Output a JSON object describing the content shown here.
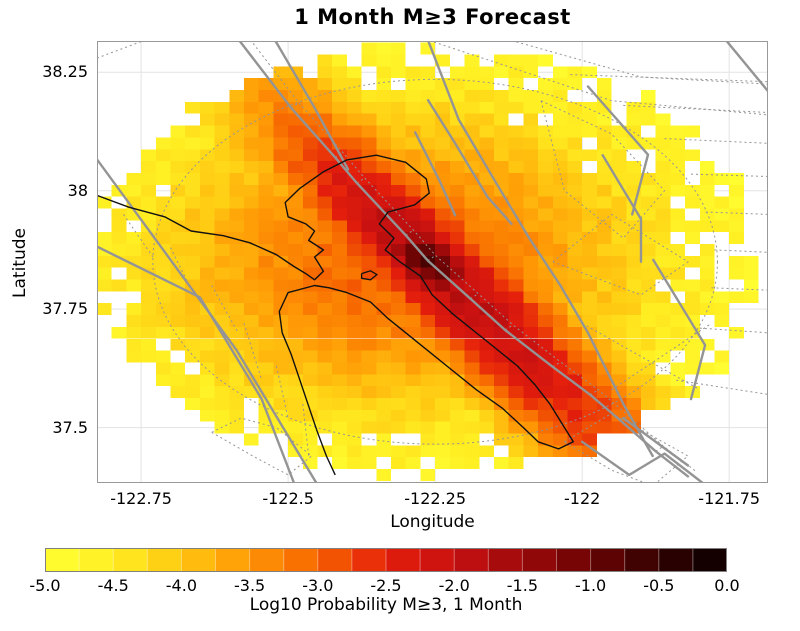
{
  "title": "1 Month M≥3 Forecast",
  "axes": {
    "xlabel": "Longitude",
    "ylabel": "Latitude",
    "xlim": [
      -122.825,
      -121.684
    ],
    "ylim": [
      37.383,
      38.316
    ],
    "x_ticks": [
      -122.75,
      -122.5,
      -122.25,
      -122.0,
      -121.75
    ],
    "x_tick_labels": [
      "-122.75",
      "-122.5",
      "-122.25",
      "-122",
      "-121.75"
    ],
    "y_ticks": [
      38.25,
      38.0,
      37.75,
      37.5
    ],
    "y_tick_labels": [
      "38.25",
      "38",
      "37.75",
      "37.5"
    ],
    "grid_color": "#e3e3e3",
    "frame_color": "#999999"
  },
  "colorbar": {
    "label": "Log10 Probability M≥3, 1 Month",
    "min": -5.0,
    "max": 0.0,
    "segments": 20,
    "ticks": [
      -5.0,
      -4.5,
      -4.0,
      -3.5,
      -3.0,
      -2.5,
      -2.0,
      -1.5,
      -1.0,
      -0.5,
      0.0
    ],
    "tick_labels": [
      "-5.0",
      "-4.5",
      "-4.0",
      "-3.5",
      "-3.0",
      "-2.5",
      "-2.0",
      "-1.5",
      "-1.0",
      "-0.5",
      "0.0"
    ],
    "border_color": "#808080"
  },
  "chart_data": {
    "type": "heatmap",
    "description": "Gridded 1-month M>=3 earthquake forecast for the San Francisco Bay Area; log10 probability per 0.025-degree cell, peak on the Hayward fault, with fault traces (gray), fault-zone polygons (dotted) and coastline (black) overlaid.",
    "value_range": [
      -5.0,
      0.0
    ],
    "cell_size_deg": 0.025,
    "grid": {
      "lon0": -122.825,
      "lat0": 37.3875,
      "cols": 46,
      "rows": 37
    },
    "peak": {
      "lon": -122.2625,
      "lat": 37.8525,
      "log10_probability": -0.7
    },
    "color_stops": [
      [
        -5.0,
        "#FFFF33"
      ],
      [
        -4.5,
        "#FFEE22"
      ],
      [
        -4.0,
        "#FFC711"
      ],
      [
        -3.5,
        "#FF9705"
      ],
      [
        -3.0,
        "#F66400"
      ],
      [
        -2.5,
        "#E41E0C"
      ],
      [
        -2.0,
        "#C81111"
      ],
      [
        -1.5,
        "#9C0909"
      ],
      [
        -1.0,
        "#6B0404"
      ],
      [
        -0.5,
        "#330101"
      ],
      [
        0.0,
        "#0A0000"
      ]
    ],
    "field_model": {
      "base_value": -5.0,
      "noise_amplitude": 0.18,
      "region_ellipse": {
        "cx": -122.26,
        "cy": 37.85,
        "rx": 0.575,
        "ry": 0.46
      },
      "background": {
        "cx": -122.31,
        "cy": 37.85,
        "sx": 0.56,
        "sy": 0.44,
        "amplitude": 2.05,
        "falloff": 1.8
      },
      "ridge": {
        "x0": -122.2625,
        "y0": 37.8525,
        "dir": [
          0.629,
          -0.777
        ],
        "amplitude": 3.2,
        "sigma_perp": 0.09,
        "sigma_along_se": 0.55,
        "sigma_along_nw": 0.36
      },
      "peak_bump": {
        "amplitude": 4.3,
        "sigma_perp": 0.055,
        "sigma_along": 0.085
      },
      "max_value": -0.55
    },
    "overlays": {
      "coastline_color": "#111111",
      "fault_color": "#949494",
      "coastline": [
        [
          -122.825,
          37.99
        ],
        [
          -122.77,
          37.965
        ],
        [
          -122.71,
          37.945
        ],
        [
          -122.665,
          37.915
        ],
        [
          -122.61,
          37.905
        ],
        [
          -122.565,
          37.89
        ],
        [
          -122.52,
          37.865
        ],
        [
          -122.49,
          37.84
        ],
        [
          -122.47,
          37.825
        ],
        [
          -122.455,
          37.812
        ],
        [
          -122.44,
          37.83
        ],
        [
          -122.455,
          37.86
        ],
        [
          -122.44,
          37.875
        ],
        [
          -122.465,
          37.895
        ],
        [
          -122.455,
          37.915
        ],
        [
          -122.47,
          37.93
        ],
        [
          -122.5,
          37.945
        ],
        [
          -122.505,
          37.975
        ],
        [
          -122.48,
          38.005
        ],
        [
          -122.44,
          38.04
        ],
        [
          -122.4,
          38.065
        ],
        [
          -122.35,
          38.075
        ],
        [
          -122.3,
          38.06
        ],
        [
          -122.265,
          38.025
        ],
        [
          -122.26,
          37.995
        ],
        [
          -122.285,
          37.97
        ],
        [
          -122.33,
          37.955
        ],
        [
          -122.345,
          37.93
        ],
        [
          -122.32,
          37.9
        ],
        [
          -122.335,
          37.875
        ],
        [
          -122.31,
          37.85
        ],
        [
          -122.275,
          37.82
        ],
        [
          -122.255,
          37.78
        ],
        [
          -122.22,
          37.74
        ],
        [
          -122.185,
          37.705
        ],
        [
          -122.15,
          37.67
        ],
        [
          -122.11,
          37.63
        ],
        [
          -122.08,
          37.59
        ],
        [
          -122.055,
          37.55
        ],
        [
          -122.03,
          37.5
        ],
        [
          -122.015,
          37.47
        ],
        [
          -122.04,
          37.455
        ],
        [
          -122.075,
          37.47
        ],
        [
          -122.1,
          37.5
        ],
        [
          -122.135,
          37.54
        ],
        [
          -122.18,
          37.58
        ],
        [
          -122.23,
          37.63
        ],
        [
          -122.285,
          37.685
        ],
        [
          -122.33,
          37.73
        ],
        [
          -122.36,
          37.765
        ],
        [
          -122.4,
          37.785
        ],
        [
          -122.43,
          37.795
        ],
        [
          -122.455,
          37.8
        ],
        [
          -122.5,
          37.785
        ],
        [
          -122.515,
          37.745
        ],
        [
          -122.51,
          37.7
        ],
        [
          -122.495,
          37.655
        ],
        [
          -122.48,
          37.6
        ],
        [
          -122.465,
          37.545
        ],
        [
          -122.45,
          37.49
        ],
        [
          -122.435,
          37.44
        ],
        [
          -122.42,
          37.4
        ]
      ],
      "island": [
        [
          -122.375,
          37.825
        ],
        [
          -122.36,
          37.831
        ],
        [
          -122.349,
          37.823
        ],
        [
          -122.36,
          37.812
        ],
        [
          -122.375,
          37.815
        ],
        [
          -122.375,
          37.825
        ]
      ],
      "faults": [
        [
          [
            -122.825,
            38.066
          ],
          [
            -122.588,
            37.664
          ],
          [
            -122.452,
            37.383
          ]
        ],
        [
          [
            -122.825,
            37.882
          ],
          [
            -122.65,
            37.775
          ],
          [
            -122.545,
            37.56
          ],
          [
            -122.49,
            37.383
          ]
        ],
        [
          [
            -122.583,
            38.317
          ],
          [
            -122.495,
            38.175
          ],
          [
            -122.42,
            38.07
          ],
          [
            -122.383,
            38.016
          ],
          [
            -122.3,
            37.906
          ],
          [
            -122.2625,
            37.8525
          ],
          [
            -122.19,
            37.772
          ],
          [
            -122.131,
            37.706
          ],
          [
            -122.05,
            37.628
          ],
          [
            -121.986,
            37.569
          ],
          [
            -121.935,
            37.515
          ],
          [
            -121.875,
            37.45
          ],
          [
            -121.82,
            37.397
          ]
        ],
        [
          [
            -122.522,
            38.317
          ],
          [
            -122.455,
            38.175
          ],
          [
            -122.398,
            38.045
          ]
        ],
        [
          [
            -122.262,
            38.317
          ],
          [
            -122.21,
            38.15
          ],
          [
            -122.148,
            38.02
          ],
          [
            -122.09,
            37.9
          ],
          [
            -122.037,
            37.8
          ],
          [
            -121.99,
            37.7
          ],
          [
            -121.93,
            37.55
          ],
          [
            -121.88,
            37.44
          ]
        ],
        [
          [
            -122.284,
            38.123
          ],
          [
            -122.243,
            38.022
          ],
          [
            -122.216,
            37.948
          ]
        ],
        [
          [
            -121.99,
            38.22
          ],
          [
            -121.888,
            38.076
          ],
          [
            -121.915,
            37.95
          ]
        ],
        [
          [
            -121.965,
            38.075
          ],
          [
            -121.9,
            37.94
          ],
          [
            -121.9,
            37.85
          ]
        ],
        [
          [
            -121.755,
            38.317
          ],
          [
            -121.684,
            38.21
          ]
        ],
        [
          [
            -122.262,
            38.191
          ],
          [
            -122.216,
            38.1
          ],
          [
            -122.161,
            37.987
          ],
          [
            -122.12,
            37.93
          ]
        ],
        [
          [
            -121.879,
            37.854
          ],
          [
            -121.791,
            37.674
          ],
          [
            -121.815,
            37.56
          ]
        ],
        [
          [
            -122.0,
            37.47
          ],
          [
            -121.92,
            37.4
          ],
          [
            -121.86,
            37.445
          ],
          [
            -121.795,
            37.383
          ]
        ],
        [
          [
            -121.93,
            37.52
          ],
          [
            -121.82,
            37.42
          ]
        ]
      ],
      "hayward_zone_offset": [
        0.0132,
        0.0107
      ],
      "dotted": [
        [
          [
            -122.78,
            37.95
          ],
          [
            -122.73,
            37.86
          ]
        ],
        [
          [
            -122.7,
            37.88
          ],
          [
            -122.66,
            37.78
          ]
        ],
        [
          [
            -122.63,
            37.8
          ],
          [
            -122.585,
            37.7
          ]
        ],
        [
          [
            -122.575,
            37.72
          ],
          [
            -122.545,
            37.6
          ]
        ],
        [
          [
            -122.52,
            37.63
          ],
          [
            -122.5,
            37.52
          ]
        ],
        [
          [
            -122.475,
            37.55
          ],
          [
            -122.465,
            37.44
          ]
        ],
        [
          [
            -122.825,
            38.28
          ],
          [
            -122.745,
            38.317
          ]
        ],
        [
          [
            -122.26,
            38.317
          ],
          [
            -121.95,
            38.19
          ],
          [
            -121.684,
            38.16
          ]
        ],
        [
          [
            -122.12,
            38.317
          ],
          [
            -121.9,
            38.24
          ],
          [
            -121.684,
            38.225
          ]
        ],
        [
          [
            -122.02,
            38.245
          ],
          [
            -121.684,
            38.23
          ]
        ],
        [
          [
            -121.93,
            38.18
          ],
          [
            -121.684,
            38.165
          ]
        ],
        [
          [
            -121.86,
            38.11
          ],
          [
            -121.684,
            38.1
          ]
        ],
        [
          [
            -121.815,
            38.035
          ],
          [
            -121.684,
            38.03
          ]
        ],
        [
          [
            -121.79,
            37.955
          ],
          [
            -121.684,
            37.95
          ]
        ],
        [
          [
            -121.775,
            37.875
          ],
          [
            -121.684,
            37.87
          ]
        ],
        [
          [
            -121.78,
            37.795
          ],
          [
            -121.684,
            37.79
          ]
        ],
        [
          [
            -121.8,
            37.71
          ],
          [
            -121.684,
            37.7
          ]
        ],
        [
          [
            -121.84,
            37.6
          ],
          [
            -121.684,
            37.57
          ]
        ],
        [
          [
            -122.03,
            37.47
          ],
          [
            -121.95,
            37.53
          ],
          [
            -121.82,
            37.44
          ],
          [
            -121.88,
            37.377
          ],
          [
            -121.95,
            37.41
          ],
          [
            -122.03,
            37.47
          ]
        ],
        [
          [
            -122.0,
            37.72
          ],
          [
            -121.8,
            37.58
          ]
        ],
        [
          [
            -121.95,
            37.58
          ],
          [
            -121.78,
            37.72
          ]
        ],
        [
          [
            -122.07,
            38.19
          ],
          [
            -121.95,
            38.12
          ],
          [
            -121.86,
            38.0
          ],
          [
            -121.93,
            37.9
          ],
          [
            -122.03,
            38.0
          ],
          [
            -122.07,
            38.19
          ]
        ],
        [
          [
            -122.63,
            37.49
          ],
          [
            -122.56,
            37.44
          ],
          [
            -122.5,
            37.4
          ],
          [
            -122.46,
            37.44
          ],
          [
            -122.52,
            37.5
          ],
          [
            -122.58,
            37.52
          ],
          [
            -122.63,
            37.49
          ]
        ],
        [
          [
            -122.05,
            37.85
          ],
          [
            -121.9,
            37.78
          ],
          [
            -121.82,
            37.85
          ],
          [
            -121.95,
            37.95
          ],
          [
            -122.05,
            37.85
          ]
        ]
      ],
      "dotted_ellipse": {
        "cx": -122.25,
        "cy": 37.85,
        "rx": 0.48,
        "ry": 0.385
      }
    }
  }
}
